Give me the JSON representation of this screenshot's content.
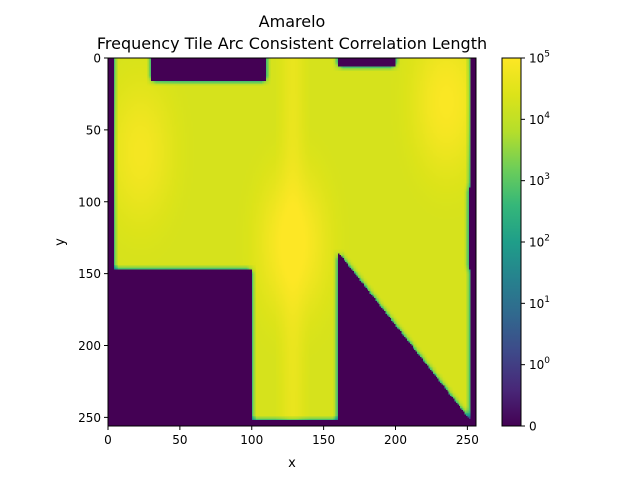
{
  "chart_data": {
    "type": "heatmap",
    "title": "Amarelo",
    "subtitle": "Frequency Tile Arc Consistent Correlation Length",
    "xlabel": "x",
    "ylabel": "y",
    "xlim": [
      0,
      256
    ],
    "ylim": [
      256,
      0
    ],
    "x_ticks": [
      0,
      50,
      100,
      150,
      200,
      250
    ],
    "y_ticks": [
      0,
      50,
      100,
      150,
      200,
      250
    ],
    "colormap": "viridis",
    "color_scale": "symlog",
    "colorbar_ticks": [
      {
        "value": 0,
        "label": "0"
      },
      {
        "value": 1,
        "label": "10",
        "exp": "0"
      },
      {
        "value": 10,
        "label": "10",
        "exp": "1"
      },
      {
        "value": 100,
        "label": "10",
        "exp": "2"
      },
      {
        "value": 1000,
        "label": "10",
        "exp": "3"
      },
      {
        "value": 10000,
        "label": "10",
        "exp": "4"
      },
      {
        "value": 100000,
        "label": "10",
        "exp": "5"
      }
    ],
    "background_value": 0,
    "typical_value": 20000,
    "max_value": 120000,
    "region": {
      "description": "filled shape: upper rectangle with top-left and top-right lobes, central column, and lower-right diagonal wedge",
      "upper_block": {
        "x": [
          4,
          252
        ],
        "y": [
          0,
          147
        ]
      },
      "column": {
        "x": [
          100,
          160
        ],
        "y": [
          0,
          252
        ]
      },
      "wedge": {
        "apex": [
          160,
          135
        ],
        "right_edge_x": 252,
        "top_y": 90,
        "bottom_y": 252
      }
    },
    "hotspots": [
      {
        "x": 128,
        "y": 128,
        "value": 110000
      },
      {
        "x": 235,
        "y": 30,
        "value": 90000
      },
      {
        "x": 22,
        "y": 65,
        "value": 70000
      }
    ]
  }
}
